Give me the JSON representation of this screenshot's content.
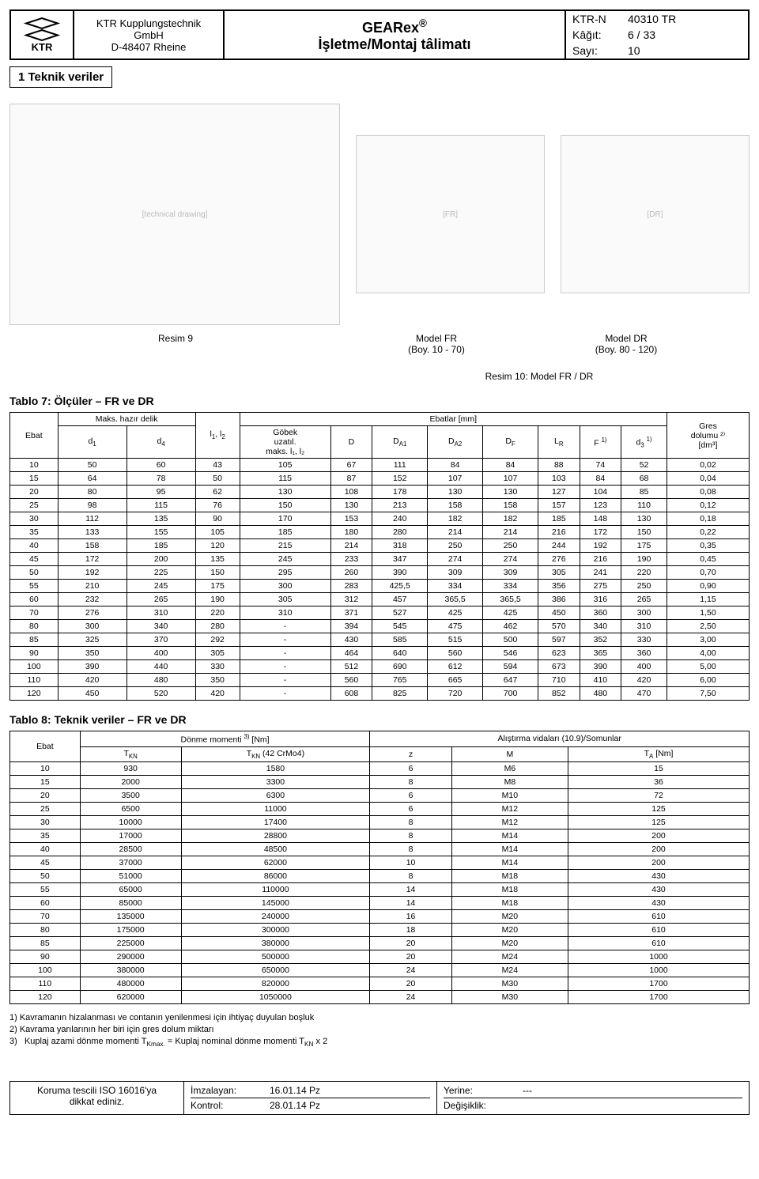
{
  "header": {
    "logo_text": "KTR",
    "company_lines": [
      "KTR Kupplungstechnik",
      "GmbH",
      "D-48407 Rheine"
    ],
    "title_line1": "GEARex",
    "title_reg": "®",
    "title_line2": "İşletme/Montaj tâlimatı",
    "meta": [
      {
        "k": "KTR-N",
        "v": "40310 TR"
      },
      {
        "k": "Kâğıt:",
        "v": "6 / 33"
      },
      {
        "k": "Sayı:",
        "v": "10"
      }
    ]
  },
  "section_title": "1 Teknik veriler",
  "captions": {
    "resim9": "Resim 9",
    "fr": "Model FR",
    "fr_sub": "(Boy. 10 - 70)",
    "dr": "Model DR",
    "dr_sub": "(Boy. 80 - 120)",
    "resim10": "Resim 10: Model FR / DR"
  },
  "table7": {
    "title": "Tablo 7: Ölçüler – FR ve DR",
    "h_ebat": "Ebat",
    "h_maks": "Maks. hazır delik",
    "h_d1": "d₁",
    "h_d4": "d₄",
    "h_l": "l₁, l₂",
    "h_ebatlar": "Ebatlar [mm]",
    "h_gobek1": "Göbek",
    "h_gobek2": "uzatıl.",
    "h_gobek3": "maks. l₁, l₂",
    "h_D": "D",
    "h_DA1": "D_A1",
    "h_DA2": "D_A2",
    "h_DF": "D_F",
    "h_LR": "L_R",
    "h_F": "F ¹⁾",
    "h_d3": "d₃ ¹⁾",
    "h_gres1": "Gres",
    "h_gres2": "dolumu ²⁾",
    "h_gres3": "[dm³]",
    "rows": [
      [
        "10",
        "50",
        "60",
        "43",
        "105",
        "67",
        "111",
        "84",
        "84",
        "88",
        "74",
        "52",
        "0,02"
      ],
      [
        "15",
        "64",
        "78",
        "50",
        "115",
        "87",
        "152",
        "107",
        "107",
        "103",
        "84",
        "68",
        "0,04"
      ],
      [
        "20",
        "80",
        "95",
        "62",
        "130",
        "108",
        "178",
        "130",
        "130",
        "127",
        "104",
        "85",
        "0,08"
      ],
      [
        "25",
        "98",
        "115",
        "76",
        "150",
        "130",
        "213",
        "158",
        "158",
        "157",
        "123",
        "110",
        "0,12"
      ],
      [
        "30",
        "112",
        "135",
        "90",
        "170",
        "153",
        "240",
        "182",
        "182",
        "185",
        "148",
        "130",
        "0,18"
      ],
      [
        "35",
        "133",
        "155",
        "105",
        "185",
        "180",
        "280",
        "214",
        "214",
        "216",
        "172",
        "150",
        "0,22"
      ],
      [
        "40",
        "158",
        "185",
        "120",
        "215",
        "214",
        "318",
        "250",
        "250",
        "244",
        "192",
        "175",
        "0,35"
      ],
      [
        "45",
        "172",
        "200",
        "135",
        "245",
        "233",
        "347",
        "274",
        "274",
        "276",
        "216",
        "190",
        "0,45"
      ],
      [
        "50",
        "192",
        "225",
        "150",
        "295",
        "260",
        "390",
        "309",
        "309",
        "305",
        "241",
        "220",
        "0,70"
      ],
      [
        "55",
        "210",
        "245",
        "175",
        "300",
        "283",
        "425,5",
        "334",
        "334",
        "356",
        "275",
        "250",
        "0,90"
      ],
      [
        "60",
        "232",
        "265",
        "190",
        "305",
        "312",
        "457",
        "365,5",
        "365,5",
        "386",
        "316",
        "265",
        "1,15"
      ],
      [
        "70",
        "276",
        "310",
        "220",
        "310",
        "371",
        "527",
        "425",
        "425",
        "450",
        "360",
        "300",
        "1,50"
      ],
      [
        "80",
        "300",
        "340",
        "280",
        "-",
        "394",
        "545",
        "475",
        "462",
        "570",
        "340",
        "310",
        "2,50"
      ],
      [
        "85",
        "325",
        "370",
        "292",
        "-",
        "430",
        "585",
        "515",
        "500",
        "597",
        "352",
        "330",
        "3,00"
      ],
      [
        "90",
        "350",
        "400",
        "305",
        "-",
        "464",
        "640",
        "560",
        "546",
        "623",
        "365",
        "360",
        "4,00"
      ],
      [
        "100",
        "390",
        "440",
        "330",
        "-",
        "512",
        "690",
        "612",
        "594",
        "673",
        "390",
        "400",
        "5,00"
      ],
      [
        "110",
        "420",
        "480",
        "350",
        "-",
        "560",
        "765",
        "665",
        "647",
        "710",
        "410",
        "420",
        "6,00"
      ],
      [
        "120",
        "450",
        "520",
        "420",
        "-",
        "608",
        "825",
        "720",
        "700",
        "852",
        "480",
        "470",
        "7,50"
      ]
    ]
  },
  "table8": {
    "title": "Tablo 8: Teknik veriler – FR ve DR",
    "h_ebat": "Ebat",
    "h_donme": "Dönme momenti ³⁾ [Nm]",
    "h_tkn": "T_KN",
    "h_tkn42": "T_KN (42 CrMo4)",
    "h_alis": "Alıştırma vidaları (10.9)/Somunlar",
    "h_z": "z",
    "h_M": "M",
    "h_TA": "T_A [Nm]",
    "rows": [
      [
        "10",
        "930",
        "1580",
        "6",
        "M6",
        "15"
      ],
      [
        "15",
        "2000",
        "3300",
        "8",
        "M8",
        "36"
      ],
      [
        "20",
        "3500",
        "6300",
        "6",
        "M10",
        "72"
      ],
      [
        "25",
        "6500",
        "11000",
        "6",
        "M12",
        "125"
      ],
      [
        "30",
        "10000",
        "17400",
        "8",
        "M12",
        "125"
      ],
      [
        "35",
        "17000",
        "28800",
        "8",
        "M14",
        "200"
      ],
      [
        "40",
        "28500",
        "48500",
        "8",
        "M14",
        "200"
      ],
      [
        "45",
        "37000",
        "62000",
        "10",
        "M14",
        "200"
      ],
      [
        "50",
        "51000",
        "86000",
        "8",
        "M18",
        "430"
      ],
      [
        "55",
        "65000",
        "110000",
        "14",
        "M18",
        "430"
      ],
      [
        "60",
        "85000",
        "145000",
        "14",
        "M18",
        "430"
      ],
      [
        "70",
        "135000",
        "240000",
        "16",
        "M20",
        "610"
      ],
      [
        "80",
        "175000",
        "300000",
        "18",
        "M20",
        "610"
      ],
      [
        "85",
        "225000",
        "380000",
        "20",
        "M20",
        "610"
      ],
      [
        "90",
        "290000",
        "500000",
        "20",
        "M24",
        "1000"
      ],
      [
        "100",
        "380000",
        "650000",
        "24",
        "M24",
        "1000"
      ],
      [
        "110",
        "480000",
        "820000",
        "20",
        "M30",
        "1700"
      ],
      [
        "120",
        "620000",
        "1050000",
        "24",
        "M30",
        "1700"
      ]
    ]
  },
  "footnotes": [
    "1)   Kavramanın hizalanması ve contanın yenilenmesi için ihtiyaç duyulan boşluk",
    "2)   Kavrama yarılarının her biri için gres dolum miktarı",
    "3)   Kuplaj azami dönme momenti T_Kmax. = Kuplaj nominal dönme momenti T_KN x 2"
  ],
  "footer": {
    "iso1": "Koruma tescili ISO 16016'ya",
    "iso2": "dikkat ediniz.",
    "imza_k": "İmzalayan:",
    "imza_v": "16.01.14 Pz",
    "kontrol_k": "Kontrol:",
    "kontrol_v": "28.01.14 Pz",
    "yerine_k": "Yerine:",
    "yerine_v": "---",
    "degis_k": "Değişiklik:",
    "degis_v": ""
  }
}
